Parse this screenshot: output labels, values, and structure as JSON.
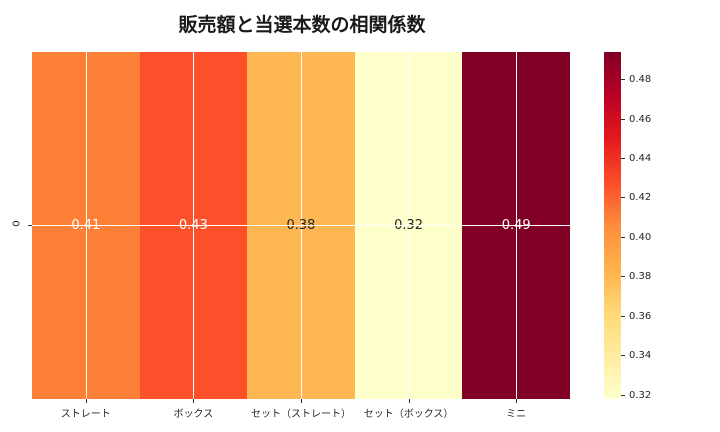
{
  "title": "販売額と当選本数の相関係数",
  "chart_data": {
    "type": "heatmap",
    "title": "販売額と当選本数の相関係数",
    "xlabel": "",
    "ylabel": "",
    "categories": [
      "ストレート",
      "ボックス",
      "セット（ストレート）",
      "セット（ボックス）",
      "ミニ"
    ],
    "rows": [
      "0"
    ],
    "values": [
      [
        0.41,
        0.43,
        0.38,
        0.32,
        0.49
      ]
    ],
    "value_labels": [
      "0.41",
      "0.43",
      "0.38",
      "0.32",
      "0.49"
    ],
    "cell_colors": [
      "#fd8037",
      "#fc502b",
      "#feb752",
      "#ffffcb",
      "#800026"
    ],
    "text_colors": [
      "#ffffff",
      "#ffffff",
      "#262626",
      "#262626",
      "#ffffff"
    ],
    "colorbar": {
      "range": [
        0.318,
        0.494
      ],
      "ticks": [
        "0.32",
        "0.34",
        "0.36",
        "0.38",
        "0.40",
        "0.42",
        "0.44",
        "0.46",
        "0.48"
      ],
      "colormap": "YlOrRd"
    },
    "grid": true
  }
}
